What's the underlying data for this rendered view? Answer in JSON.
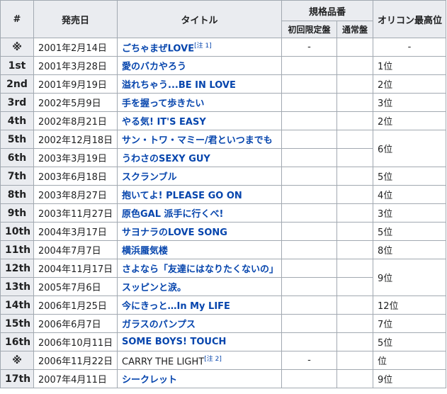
{
  "headers": {
    "num": "#",
    "date": "発売日",
    "title": "タイトル",
    "spec": "規格品番",
    "spec_limited": "初回限定盤",
    "spec_regular": "通常盤",
    "oricon": "オリコン最高位"
  },
  "rows": [
    {
      "num": "※",
      "date": "2001年2月14日",
      "title": "ごちゃまぜLOVE",
      "note": "[注 1]",
      "limited": "-",
      "regular": "",
      "rank": "-"
    },
    {
      "num": "1st",
      "date": "2001年3月28日",
      "title": "愛のバカやろう",
      "limited": "",
      "regular": "",
      "rank": "1位"
    },
    {
      "num": "2nd",
      "date": "2001年9月19日",
      "title": "溢れちゃう...BE IN LOVE",
      "limited": "",
      "regular": "",
      "rank": "2位"
    },
    {
      "num": "3rd",
      "date": "2002年5月9日",
      "title": "手を握って歩きたい",
      "limited": "",
      "regular": "",
      "rank": "3位"
    },
    {
      "num": "4th",
      "date": "2002年8月21日",
      "title": "やる気! IT'S EASY",
      "limited": "",
      "regular": "",
      "rank": "2位"
    },
    {
      "num": "5th",
      "date": "2002年12月18日",
      "title": "サン・トワ・マミー/君といつまでも",
      "limited": "",
      "regular": "",
      "rank": "6位"
    },
    {
      "num": "6th",
      "date": "2003年3月19日",
      "title": "うわさのSEXY GUY",
      "limited": "",
      "regular": ""
    },
    {
      "num": "7th",
      "date": "2003年6月18日",
      "title": "スクランブル",
      "limited": "",
      "regular": "",
      "rank": "5位"
    },
    {
      "num": "8th",
      "date": "2003年8月27日",
      "title": "抱いてよ! PLEASE GO ON",
      "limited": "",
      "regular": "",
      "rank": "4位"
    },
    {
      "num": "9th",
      "date": "2003年11月27日",
      "title": "原色GAL 派手に行くべ!",
      "limited": "",
      "regular": "",
      "rank": "3位"
    },
    {
      "num": "10th",
      "date": "2004年3月17日",
      "title": "サヨナラのLOVE SONG",
      "limited": "",
      "regular": "",
      "rank": "5位"
    },
    {
      "num": "11th",
      "date": "2004年7月7日",
      "title": "横浜蜃気楼",
      "limited": "",
      "regular": "",
      "rank": "8位"
    },
    {
      "num": "12th",
      "date": "2004年11月17日",
      "title": "さよなら「友達にはなりたくないの」",
      "limited": "",
      "regular": "",
      "rank": "9位"
    },
    {
      "num": "13th",
      "date": "2005年7月6日",
      "title": "スッピンと涙。",
      "limited": "",
      "regular": ""
    },
    {
      "num": "14th",
      "date": "2006年1月25日",
      "title": "今にきっと…In My LIFE",
      "limited": "",
      "regular": "",
      "rank": "12位"
    },
    {
      "num": "15th",
      "date": "2006年6月7日",
      "title": "ガラスのパンプス",
      "limited": "",
      "regular": "",
      "rank": "7位"
    },
    {
      "num": "16th",
      "date": "2006年10月11日",
      "title": "SOME BOYS! TOUCH",
      "limited": "",
      "regular": "",
      "rank": "5位"
    },
    {
      "num": "※",
      "date": "2006年11月22日",
      "title": "CARRY THE LIGHT",
      "note": "[注 2]",
      "limited": "-",
      "regular": "",
      "rank": "位",
      "plain": true
    },
    {
      "num": "17th",
      "date": "2007年4月11日",
      "title": "シークレット",
      "limited": "",
      "regular": "",
      "rank": "9位"
    }
  ]
}
